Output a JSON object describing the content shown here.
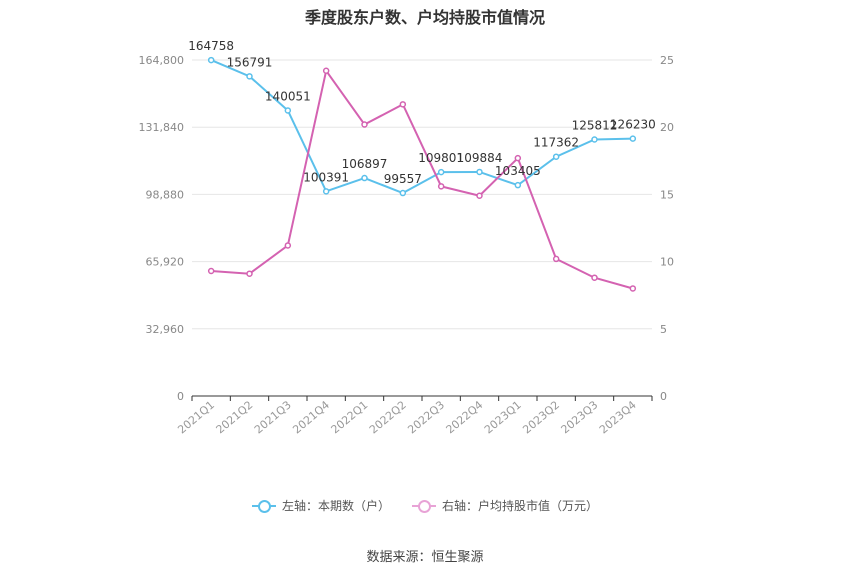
{
  "title": "季度股东户数、户均持股市值情况",
  "source": "数据来源：恒生聚源",
  "colors": {
    "left_series": "#5bc0eb",
    "right_series": "#d462b1",
    "grid": "#e6e6e6",
    "axis": "#333333"
  },
  "legend": [
    {
      "label": "左轴：本期数（户）",
      "color": "#5bc0eb"
    },
    {
      "label": "右轴：户均持股市值（万元）",
      "color": "#e8a3d6"
    }
  ],
  "chart_data": {
    "type": "line",
    "title": "季度股东户数、户均持股市值情况",
    "categories": [
      "2021Q1",
      "2021Q2",
      "2021Q3",
      "2021Q4",
      "2022Q1",
      "2022Q2",
      "2022Q3",
      "2022Q4",
      "2023Q1",
      "2023Q2",
      "2023Q3",
      "2023Q4"
    ],
    "left_axis": {
      "ticks": [
        "0",
        "32,960",
        "65,920",
        "98,880",
        "131,840",
        "164,800"
      ],
      "ylim": [
        0,
        164800
      ]
    },
    "right_axis": {
      "ticks": [
        "0",
        "5",
        "10",
        "15",
        "20",
        "25"
      ],
      "ylim": [
        0,
        25
      ]
    },
    "series": [
      {
        "name": "左轴：本期数（户）",
        "axis": "left",
        "values": [
          164758,
          156791,
          140051,
          100391,
          106897,
          99557,
          109801,
          109884,
          103405,
          117362,
          125812,
          126230
        ],
        "labels": [
          "164758",
          "156791",
          "140051",
          "100391",
          "106897",
          "99557",
          "109801",
          "109884",
          "103405",
          "117362",
          "125812",
          "126230"
        ]
      },
      {
        "name": "右轴：户均持股市值（万元）",
        "axis": "right",
        "values": [
          9.3,
          9.1,
          11.2,
          24.2,
          20.2,
          21.7,
          15.6,
          14.9,
          17.7,
          10.2,
          8.8,
          8.0
        ]
      }
    ],
    "grid": true,
    "legend_position": "bottom"
  }
}
